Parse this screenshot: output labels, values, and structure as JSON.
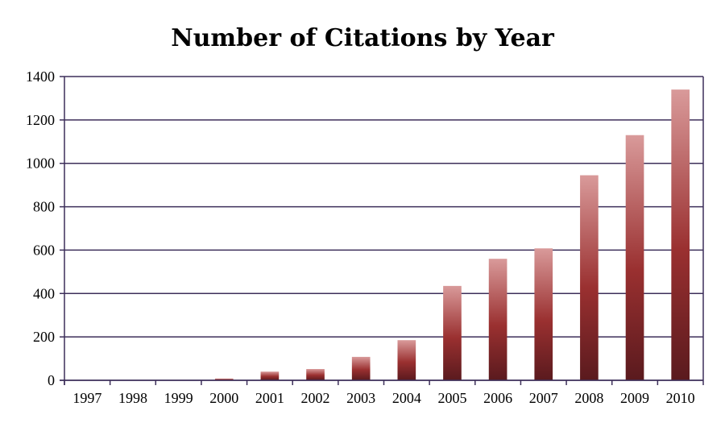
{
  "chart_data": {
    "type": "bar",
    "title": "Number of Citations by Year",
    "xlabel": "",
    "ylabel": "",
    "categories": [
      "1997",
      "1998",
      "1999",
      "2000",
      "2001",
      "2002",
      "2003",
      "2004",
      "2005",
      "2006",
      "2007",
      "2008",
      "2009",
      "2010"
    ],
    "values": [
      0,
      0,
      2,
      8,
      40,
      52,
      108,
      185,
      435,
      560,
      608,
      945,
      1130,
      1340
    ],
    "ylim": [
      0,
      1400
    ],
    "yticks": [
      0,
      200,
      400,
      600,
      800,
      1000,
      1200,
      1400
    ],
    "grid": true,
    "legend": "none",
    "colors": {
      "bar_light": "#d99a9a",
      "bar_mid": "#9a3030",
      "bar_dark": "#5a1a1e",
      "grid": "#3d2f5a"
    }
  }
}
